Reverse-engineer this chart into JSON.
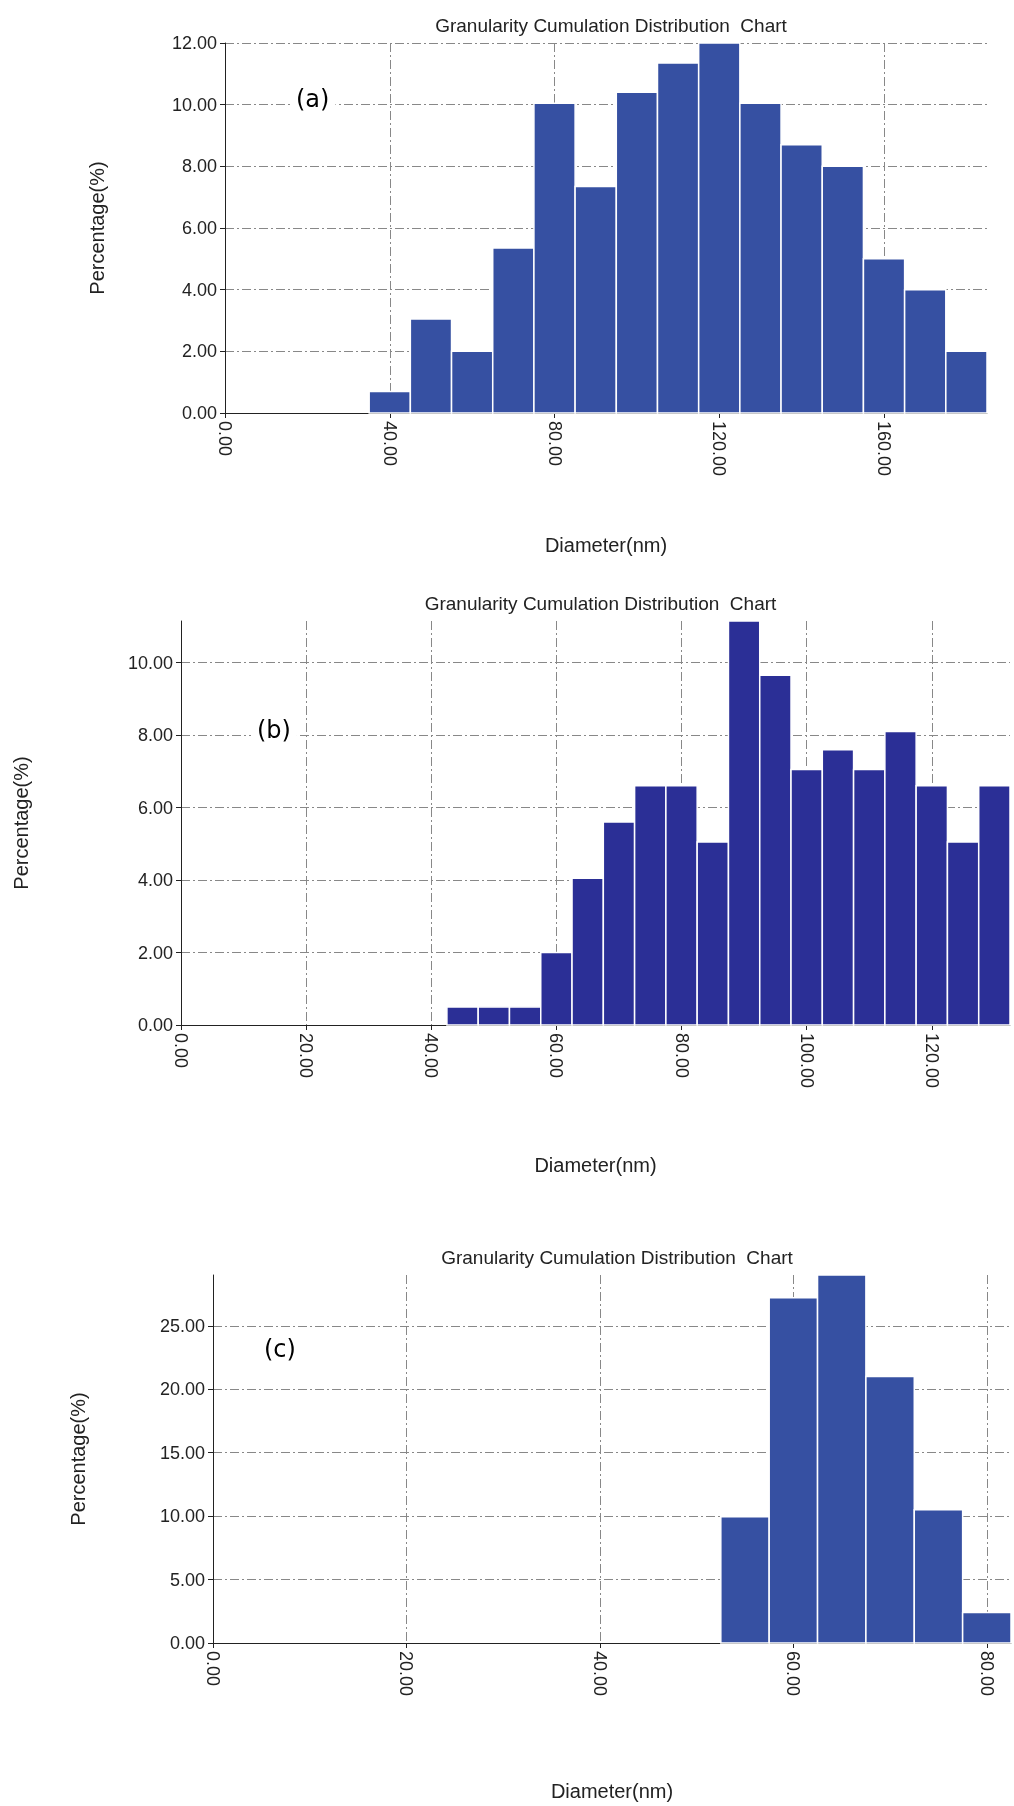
{
  "chart_data": [
    {
      "type": "histogram",
      "title": "Granularity Cumulation Distribution  Chart",
      "xlabel": "Diameter(nm)",
      "ylabel": "Percentage(%)",
      "annotations": [
        "(a)"
      ],
      "color": "#3650a2",
      "grid": true,
      "bins": [
        35,
        45,
        55,
        65,
        75,
        85,
        95,
        105,
        115,
        125,
        135,
        145,
        155,
        165,
        175,
        185
      ],
      "values": [
        0.7,
        3.05,
        2.0,
        5.35,
        10.05,
        7.35,
        10.4,
        11.35,
        12.0,
        10.05,
        8.7,
        8.0,
        5.0,
        4.0,
        2.0
      ],
      "xlim": [
        0,
        185
      ],
      "xticks": [
        {
          "value": 0,
          "label": "0.00"
        },
        {
          "value": 40,
          "label": "40.00"
        },
        {
          "value": 80,
          "label": "80.00"
        },
        {
          "value": 120,
          "label": "120.00"
        },
        {
          "value": 160,
          "label": "160.00"
        }
      ],
      "ylim": [
        0,
        12
      ],
      "yticks": [
        {
          "value": 0,
          "label": "0.00"
        },
        {
          "value": 2,
          "label": "2.00"
        },
        {
          "value": 4,
          "label": "4.00"
        },
        {
          "value": 6,
          "label": "6.00"
        },
        {
          "value": 8,
          "label": "8.00"
        },
        {
          "value": 10,
          "label": "10.00"
        },
        {
          "value": 12,
          "label": "12.00"
        }
      ]
    },
    {
      "type": "histogram",
      "title": "Granularity Cumulation Distribution  Chart",
      "xlabel": "Diameter(nm)",
      "ylabel": "Percentage(%)",
      "annotations": [
        "(b)"
      ],
      "color": "#2b2f96",
      "grid": true,
      "bins": [
        42.5,
        47.5,
        52.5,
        57.5,
        62.5,
        67.5,
        72.5,
        77.5,
        82.5,
        87.5,
        92.5,
        97.5,
        102.5,
        107.5,
        112.5,
        117.5,
        122.5,
        127.5,
        132.5
      ],
      "values": [
        0.5,
        0.5,
        0.5,
        2.0,
        4.05,
        5.6,
        6.6,
        6.6,
        5.05,
        11.15,
        9.65,
        7.05,
        7.6,
        7.05,
        8.1,
        6.6,
        5.05,
        6.6
      ],
      "xlim": [
        0,
        132.5
      ],
      "xticks": [
        {
          "value": 0,
          "label": "0.00"
        },
        {
          "value": 20,
          "label": "20.00"
        },
        {
          "value": 40,
          "label": "40.00"
        },
        {
          "value": 60,
          "label": "60.00"
        },
        {
          "value": 80,
          "label": "80.00"
        },
        {
          "value": 100,
          "label": "100.00"
        },
        {
          "value": 120,
          "label": "120.00"
        }
      ],
      "ylim": [
        0,
        11.15
      ],
      "yticks": [
        {
          "value": 0,
          "label": "0.00"
        },
        {
          "value": 2,
          "label": "2.00"
        },
        {
          "value": 4,
          "label": "4.00"
        },
        {
          "value": 6,
          "label": "6.00"
        },
        {
          "value": 8,
          "label": "8.00"
        },
        {
          "value": 10,
          "label": "10.00"
        }
      ]
    },
    {
      "type": "histogram",
      "title": "Granularity Cumulation Distribution  Chart",
      "xlabel": "Diameter(nm)",
      "ylabel": "Percentage(%)",
      "annotations": [
        "(c)"
      ],
      "color": "#3650a2",
      "grid": true,
      "bins": [
        52.5,
        57.5,
        62.5,
        67.5,
        72.5,
        77.5,
        82.5
      ],
      "values": [
        9.95,
        27.2,
        29.0,
        21.0,
        10.5,
        2.4
      ],
      "xlim": [
        0,
        82.5
      ],
      "xticks": [
        {
          "value": 0,
          "label": "0.00"
        },
        {
          "value": 20,
          "label": "20.00"
        },
        {
          "value": 40,
          "label": "40.00"
        },
        {
          "value": 60,
          "label": "60.00"
        },
        {
          "value": 80,
          "label": "80.00"
        }
      ],
      "ylim": [
        0,
        29.0
      ],
      "yticks": [
        {
          "value": 0,
          "label": "0.00"
        },
        {
          "value": 5,
          "label": "5.00"
        },
        {
          "value": 10,
          "label": "10.00"
        },
        {
          "value": 15,
          "label": "15.00"
        },
        {
          "value": 20,
          "label": "20.00"
        },
        {
          "value": 25,
          "label": "25.00"
        }
      ]
    }
  ]
}
